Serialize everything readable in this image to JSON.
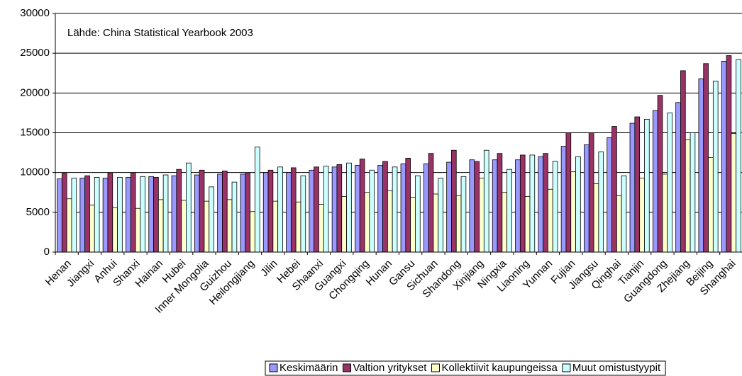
{
  "chart_data": {
    "type": "bar",
    "annotation": "Lähde: China Statistical Yearbook 2003",
    "categories": [
      "Henan",
      "Jiangxi",
      "Anhui",
      "Shanxi",
      "Hainan",
      "Hubei",
      "Inner Mongolia",
      "Guizhou",
      "Heilongjiang",
      "Jilin",
      "Hebei",
      "Shaanxi",
      "Guangxi",
      "Chongqing",
      "Hunan",
      "Gansu",
      "Sichuan",
      "Shandong",
      "Xinjiang",
      "Ningxia",
      "Liaoning",
      "Yunnan",
      "Fujian",
      "Jiangsu",
      "Qinghai",
      "Tianjin",
      "Guangdong",
      "Zhejiang",
      "Beijing",
      "Shanghai"
    ],
    "series": [
      {
        "name": "Keskimäärin",
        "color": "#9999ff",
        "values": [
          9200,
          9300,
          9300,
          9400,
          9500,
          9600,
          9700,
          9800,
          9800,
          10000,
          10000,
          10300,
          10700,
          10900,
          10900,
          11100,
          11100,
          11300,
          11600,
          11600,
          11600,
          12000,
          13300,
          13500,
          14400,
          16200,
          17800,
          18800,
          21800,
          24000
        ]
      },
      {
        "name": "Valtion yritykset",
        "color": "#993366",
        "values": [
          9900,
          9600,
          9900,
          9900,
          9400,
          10400,
          10300,
          10200,
          9900,
          10300,
          10600,
          10700,
          11000,
          11700,
          11400,
          11800,
          12400,
          12800,
          11400,
          12400,
          12200,
          12400,
          15000,
          15000,
          15800,
          17000,
          19700,
          22800,
          23700,
          24700
        ]
      },
      {
        "name": "Kollektiivit kaupungeissa",
        "color": "#ffffcc",
        "values": [
          6700,
          5900,
          5600,
          5500,
          6600,
          6500,
          6400,
          6600,
          5100,
          6400,
          6300,
          6000,
          7000,
          7500,
          7700,
          6900,
          7300,
          7100,
          9300,
          7500,
          7000,
          7900,
          10100,
          8600,
          7100,
          9300,
          9800,
          14100,
          11900,
          14900
        ]
      },
      {
        "name": "Muut omistustyypit",
        "color": "#ccffff",
        "values": [
          9300,
          9400,
          9400,
          9500,
          9700,
          11200,
          8200,
          8800,
          13200,
          10700,
          9600,
          10800,
          11200,
          10300,
          10700,
          9600,
          9300,
          9500,
          12800,
          10400,
          12200,
          11400,
          12000,
          12600,
          9600,
          16700,
          17500,
          15000,
          21500,
          24200
        ]
      }
    ],
    "ylim": [
      0,
      30000
    ],
    "yticks": [
      0,
      5000,
      10000,
      15000,
      20000,
      25000,
      30000
    ],
    "grid": true
  }
}
